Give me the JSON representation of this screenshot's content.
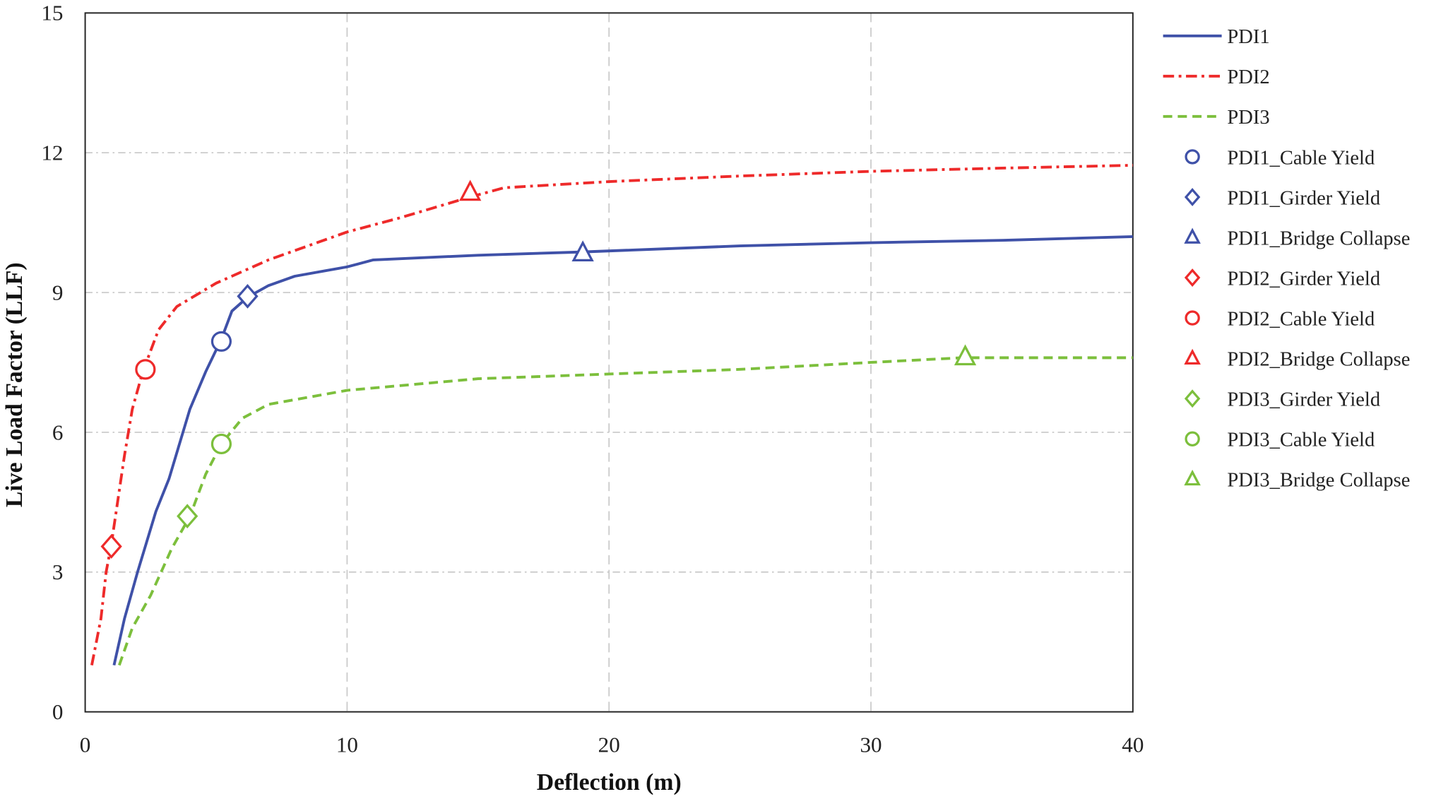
{
  "chart_data": {
    "type": "line",
    "title": "",
    "xlabel": "Deflection (m)",
    "ylabel": "Live Load Factor (LLF)",
    "xlim": [
      0,
      40
    ],
    "ylim": [
      0,
      15
    ],
    "xticks": [
      "0",
      "10",
      "20",
      "30",
      "40"
    ],
    "yticks": [
      "0",
      "3",
      "6",
      "9",
      "12",
      "15"
    ],
    "grid": true,
    "legend_position": "right",
    "colors": {
      "PDI1": "#3f51a8",
      "PDI2": "#ee2a2a",
      "PDI3": "#7cbf3c"
    },
    "series": [
      {
        "name": "PDI1",
        "style": "solid",
        "color": "#3f51a8",
        "x": [
          1.1,
          1.5,
          2.0,
          2.7,
          3.2,
          4.0,
          4.6,
          5.2,
          5.6,
          6.2,
          7.0,
          8.0,
          10.0,
          11.0,
          15.0,
          19.0,
          25.0,
          30.0,
          35.0,
          40.0
        ],
        "y": [
          1.0,
          2.0,
          3.0,
          4.3,
          5.0,
          6.5,
          7.3,
          8.0,
          8.6,
          8.9,
          9.15,
          9.35,
          9.55,
          9.7,
          9.8,
          9.87,
          10.0,
          10.07,
          10.12,
          10.2
        ]
      },
      {
        "name": "PDI2",
        "style": "dashdot",
        "color": "#ee2a2a",
        "x": [
          0.25,
          0.6,
          0.8,
          1.0,
          1.5,
          1.8,
          2.2,
          2.8,
          3.5,
          5.0,
          7.0,
          10.0,
          12.0,
          14.7,
          16.0,
          20.0,
          25.0,
          30.0,
          35.0,
          40.0
        ],
        "y": [
          1.0,
          2.0,
          3.0,
          3.6,
          5.5,
          6.5,
          7.3,
          8.2,
          8.7,
          9.2,
          9.7,
          10.3,
          10.6,
          11.05,
          11.25,
          11.38,
          11.5,
          11.6,
          11.67,
          11.73
        ]
      },
      {
        "name": "PDI3",
        "style": "dashed",
        "color": "#7cbf3c",
        "x": [
          1.3,
          1.8,
          2.5,
          3.3,
          4.0,
          4.6,
          5.2,
          6.0,
          7.0,
          10.0,
          15.0,
          20.0,
          25.0,
          30.0,
          33.5,
          40.0
        ],
        "y": [
          1.0,
          1.8,
          2.5,
          3.5,
          4.2,
          5.1,
          5.75,
          6.3,
          6.6,
          6.9,
          7.15,
          7.25,
          7.35,
          7.5,
          7.6,
          7.6
        ]
      }
    ],
    "markers": [
      {
        "name": "PDI1_Cable Yield",
        "shape": "circle",
        "color": "#3f51a8",
        "x": 5.2,
        "y": 7.95
      },
      {
        "name": "PDI1_Girder Yield",
        "shape": "diamond",
        "color": "#3f51a8",
        "x": 6.2,
        "y": 8.92
      },
      {
        "name": "PDI1_Bridge Collapse",
        "shape": "triangle",
        "color": "#3f51a8",
        "x": 19.0,
        "y": 9.85
      },
      {
        "name": "PDI2_Girder Yield",
        "shape": "diamond",
        "color": "#ee2a2a",
        "x": 1.0,
        "y": 3.55
      },
      {
        "name": "PDI2_Cable Yield",
        "shape": "circle",
        "color": "#ee2a2a",
        "x": 2.3,
        "y": 7.35
      },
      {
        "name": "PDI2_Bridge Collapse",
        "shape": "triangle",
        "color": "#ee2a2a",
        "x": 14.7,
        "y": 11.15
      },
      {
        "name": "PDI3_Girder Yield",
        "shape": "diamond",
        "color": "#7cbf3c",
        "x": 3.9,
        "y": 4.2
      },
      {
        "name": "PDI3_Cable Yield",
        "shape": "circle",
        "color": "#7cbf3c",
        "x": 5.2,
        "y": 5.75
      },
      {
        "name": "PDI3_Bridge Collapse",
        "shape": "triangle",
        "color": "#7cbf3c",
        "x": 33.6,
        "y": 7.62
      }
    ]
  }
}
